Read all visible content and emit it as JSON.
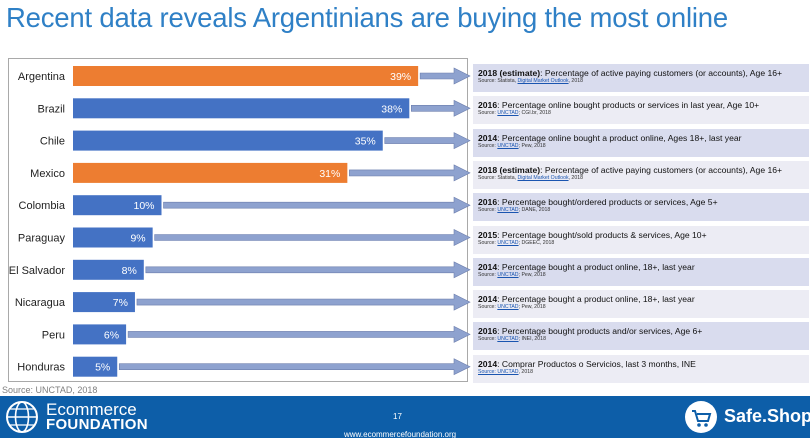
{
  "title": "Recent data reveals Argentinians are buying the most online",
  "source_line": "Source: UNCTAD, 2018",
  "colors": {
    "orange": "#ed7d31",
    "blue": "#4472c4",
    "arrow": "#8ea2cf"
  },
  "chart_data": {
    "type": "bar",
    "orientation": "horizontal",
    "categories": [
      "Argentina",
      "Brazil",
      "Chile",
      "Mexico",
      "Colombia",
      "Paraguay",
      "El Salvador",
      "Nicaragua",
      "Peru",
      "Honduras"
    ],
    "values": [
      39,
      38,
      35,
      31,
      10,
      9,
      8,
      7,
      6,
      5
    ],
    "labels": [
      "39%",
      "38%",
      "35%",
      "31%",
      "10%",
      "9%",
      "8%",
      "7%",
      "6%",
      "5%"
    ],
    "bar_colors": [
      "orange",
      "blue",
      "blue",
      "orange",
      "blue",
      "blue",
      "blue",
      "blue",
      "blue",
      "blue"
    ],
    "xlim": [
      0,
      41
    ],
    "notes": [
      {
        "bold": "2018 (estimate)",
        "text": ": Percentage of active paying customers (or accounts), Age 16+",
        "src_pre": "Source: Statista, ",
        "src_link": "Digital Market Outlook",
        "src_post": ", 2018"
      },
      {
        "bold": "2016",
        "text": ": Percentage online bought products or services in last year, Age 10+",
        "src_pre": "Source: ",
        "src_link": "UNCTAD",
        "src_post": "; CGI.br, 2018"
      },
      {
        "bold": "2014",
        "text": ": Percentage online bought a product online, Ages 18+, last year",
        "src_pre": "Source: ",
        "src_link": "UNCTAD",
        "src_post": "; Pew, 2018"
      },
      {
        "bold": "2018 (estimate)",
        "text": ": Percentage of active paying customers (or accounts), Age 16+",
        "src_pre": "Source: Statista, ",
        "src_link": "Digital Market Outlook",
        "src_post": ", 2018"
      },
      {
        "bold": "2016",
        "text": ": Percentage bought/ordered products or services, Age 5+",
        "src_pre": "Source: ",
        "src_link": "UNCTAD",
        "src_post": "; DANE, 2018"
      },
      {
        "bold": "2015",
        "text": ": Percentage bought/sold products & services, Age 10+",
        "src_pre": "Source: ",
        "src_link": "UNCTAD",
        "src_post": "; DGEEC, 2018"
      },
      {
        "bold": "2014",
        "text": ": Percentage bought a product online, 18+, last year",
        "src_pre": "Source: ",
        "src_link": "UNCTAD",
        "src_post": "; Pew, 2018"
      },
      {
        "bold": "2014",
        "text": ": Percentage bought a product online, 18+, last year",
        "src_pre": "Source: ",
        "src_link": "UNCTAD",
        "src_post": "; Pew, 2018"
      },
      {
        "bold": "2016",
        "text": ": Percentage bought products and/or services, Age 6+",
        "src_pre": "Source: ",
        "src_link": "UNCTAD",
        "src_post": "; INEI, 2018"
      },
      {
        "bold": "2014",
        "text": ": Comprar Productos o Servicios, last 3 months, INE",
        "src_pre": "",
        "src_link": "Source: UNCTAD",
        "src_post": ", 2018"
      }
    ]
  },
  "footer": {
    "brand_line1": "Ecommerce",
    "brand_line2": "FOUNDATION",
    "page_number": "17",
    "website": "www.ecommercefoundation.org",
    "right_brand": "Safe.Shop",
    "left_logo_icon": "globe-logo-icon",
    "right_logo_icon": "shopping-cart-icon"
  }
}
